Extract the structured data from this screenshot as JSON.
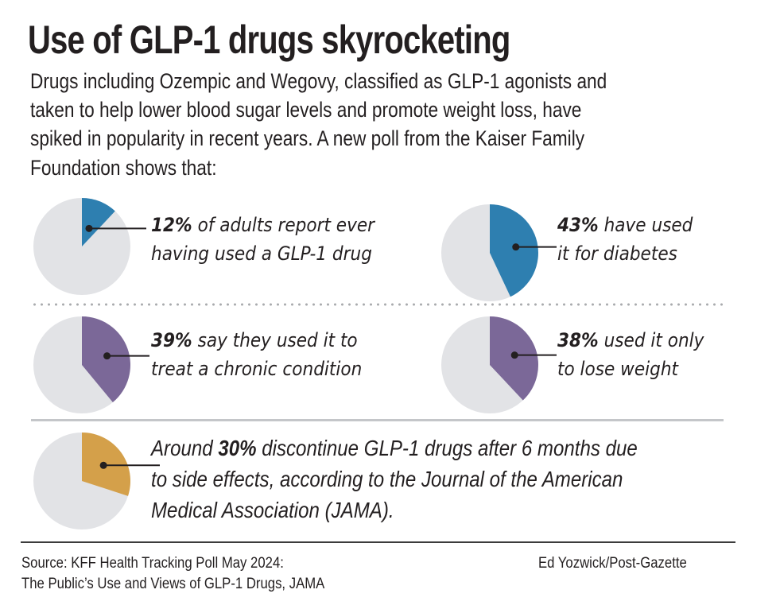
{
  "title": "Use of GLP-1 drugs skyrocketing",
  "intro_lines": [
    "Drugs including Ozempic and Wegovy, classified as GLP-1 agonists and",
    "taken to help lower blood sugar levels and promote weight loss, have",
    "spiked in popularity in recent years. A new poll from the Kaiser Family",
    "Foundation shows that:"
  ],
  "colors": {
    "blue": "#2e7fb0",
    "purple": "#7b6898",
    "gold": "#d4a04a",
    "background_slice": "#e2e3e6",
    "leader": "#231f20"
  },
  "stats": [
    {
      "pct_label": "12%",
      "lines": [
        "of adults report ever",
        "having used a GLP-1 drug"
      ]
    },
    {
      "pct_label": "43%",
      "lines": [
        "have used",
        "it for diabetes"
      ]
    },
    {
      "pct_label": "39%",
      "lines": [
        "say they used it to",
        "treat a chronic condition"
      ]
    },
    {
      "pct_label": "38%",
      "lines": [
        "used it only",
        "to lose weight"
      ]
    }
  ],
  "long_stat": {
    "prefix": "Around ",
    "pct_label": "30%",
    "line1_rest": " discontinue GLP-1 drugs after 6 months due",
    "line2": "to side effects, according to the Journal of the American",
    "line3": "Medical Association (JAMA)."
  },
  "footer": {
    "source_line1": "Source: KFF Health Tracking Poll May 2024:",
    "source_line2": "The Public’s Use and Views of GLP-1 Drugs, JAMA",
    "credit": "Ed Yozwick/Post-Gazette"
  },
  "chart_data": {
    "type": "pie",
    "title": "Use of GLP-1 drugs skyrocketing",
    "charts": [
      {
        "name": "ever-used",
        "value": 12,
        "remainder": 88,
        "color": "blue",
        "label": "12% of adults report ever having used a GLP-1 drug"
      },
      {
        "name": "diabetes",
        "value": 43,
        "remainder": 57,
        "color": "blue",
        "label": "43% have used it for diabetes"
      },
      {
        "name": "chronic-condition",
        "value": 39,
        "remainder": 61,
        "color": "purple",
        "label": "39% say they used it to treat a chronic condition"
      },
      {
        "name": "lose-weight",
        "value": 38,
        "remainder": 62,
        "color": "purple",
        "label": "38% used it only to lose weight"
      },
      {
        "name": "discontinue",
        "value": 30,
        "remainder": 70,
        "color": "gold",
        "label": "Around 30% discontinue GLP-1 drugs after 6 months due to side effects"
      }
    ],
    "legend": "none"
  }
}
